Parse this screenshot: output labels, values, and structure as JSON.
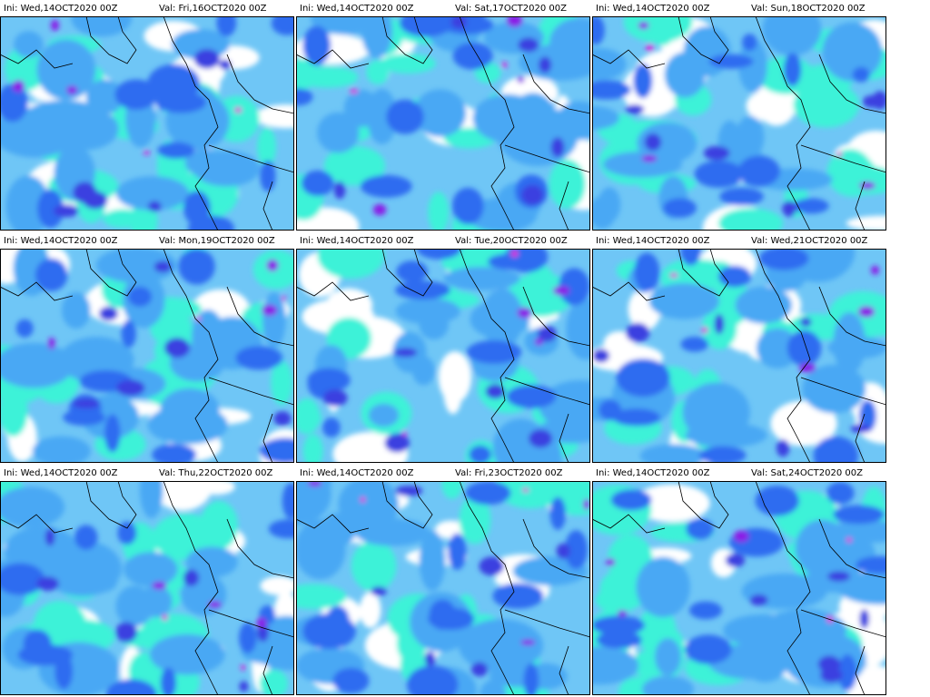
{
  "panels": [
    {
      "ini": "Ini: Wed,14OCT2020 00Z",
      "val": "Val: Fri,16OCT2020 00Z"
    },
    {
      "ini": "Ini: Wed,14OCT2020 00Z",
      "val": "Val: Sat,17OCT2020 00Z"
    },
    {
      "ini": "Ini: Wed,14OCT2020 00Z",
      "val": "Val: Sun,18OCT2020 00Z"
    },
    {
      "ini": "Ini: Wed,14OCT2020 00Z",
      "val": "Val: Mon,19OCT2020 00Z"
    },
    {
      "ini": "Ini: Wed,14OCT2020 00Z",
      "val": "Val: Tue,20OCT2020 00Z"
    },
    {
      "ini": "Ini: Wed,14OCT2020 00Z",
      "val": "Val: Wed,21OCT2020 00Z"
    },
    {
      "ini": "Ini: Wed,14OCT2020 00Z",
      "val": "Val: Thu,22OCT2020 00Z"
    },
    {
      "ini": "Ini: Wed,14OCT2020 00Z",
      "val": "Val: Fri,23OCT2020 00Z"
    },
    {
      "ini": "Ini: Wed,14OCT2020 00Z",
      "val": "Val: Sat,24OCT2020 00Z"
    }
  ]
}
